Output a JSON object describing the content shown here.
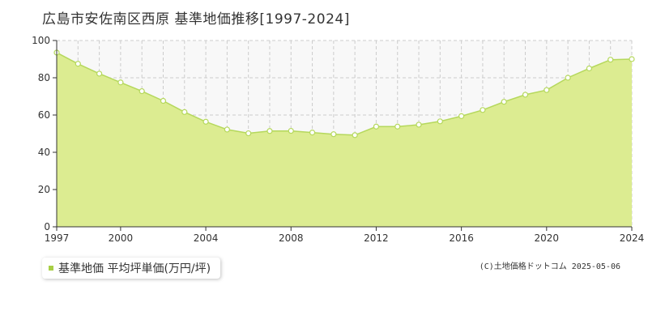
{
  "title": "広島市安佐南区西原 基準地価推移[1997-2024]",
  "legend_label": "基準地価 平均坪単価(万円/坪)",
  "copyright": "(C)土地価格ドットコム 2025-05-06",
  "colors": {
    "fill": "#dcec91",
    "line": "#b5d85c",
    "marker_stroke": "#b5d85c",
    "marker_fill": "#ffffff",
    "grid": "#cccccc",
    "plot_bg": "#f8f8f8",
    "legend_swatch": "#a8cf45"
  },
  "chart_data": {
    "type": "area",
    "x": [
      1997,
      1998,
      1999,
      2000,
      2001,
      2002,
      2003,
      2004,
      2005,
      2006,
      2007,
      2008,
      2009,
      2010,
      2011,
      2012,
      2013,
      2014,
      2015,
      2016,
      2017,
      2018,
      2019,
      2020,
      2021,
      2022,
      2023,
      2024
    ],
    "series": [
      {
        "name": "基準地価 平均坪単価(万円/坪)",
        "values": [
          93.5,
          87.5,
          82.2,
          77.5,
          72.8,
          67.6,
          61.6,
          56.4,
          52.2,
          50.2,
          51.4,
          51.5,
          50.6,
          49.7,
          49.2,
          53.8,
          53.8,
          54.8,
          56.6,
          59.4,
          62.7,
          67.1,
          70.9,
          73.4,
          80.0,
          85.0,
          89.7,
          null
        ],
        "note": ""
      }
    ],
    "xlabel": "",
    "ylabel": "",
    "xlim": [
      1997,
      2024
    ],
    "ylim": [
      0,
      100
    ],
    "yticks": [
      0,
      20,
      40,
      60,
      80,
      100
    ],
    "xticks": [
      1997,
      2000,
      2004,
      2008,
      2012,
      2016,
      2020,
      2024
    ],
    "grid": true,
    "legend_position": "bottom-left"
  }
}
